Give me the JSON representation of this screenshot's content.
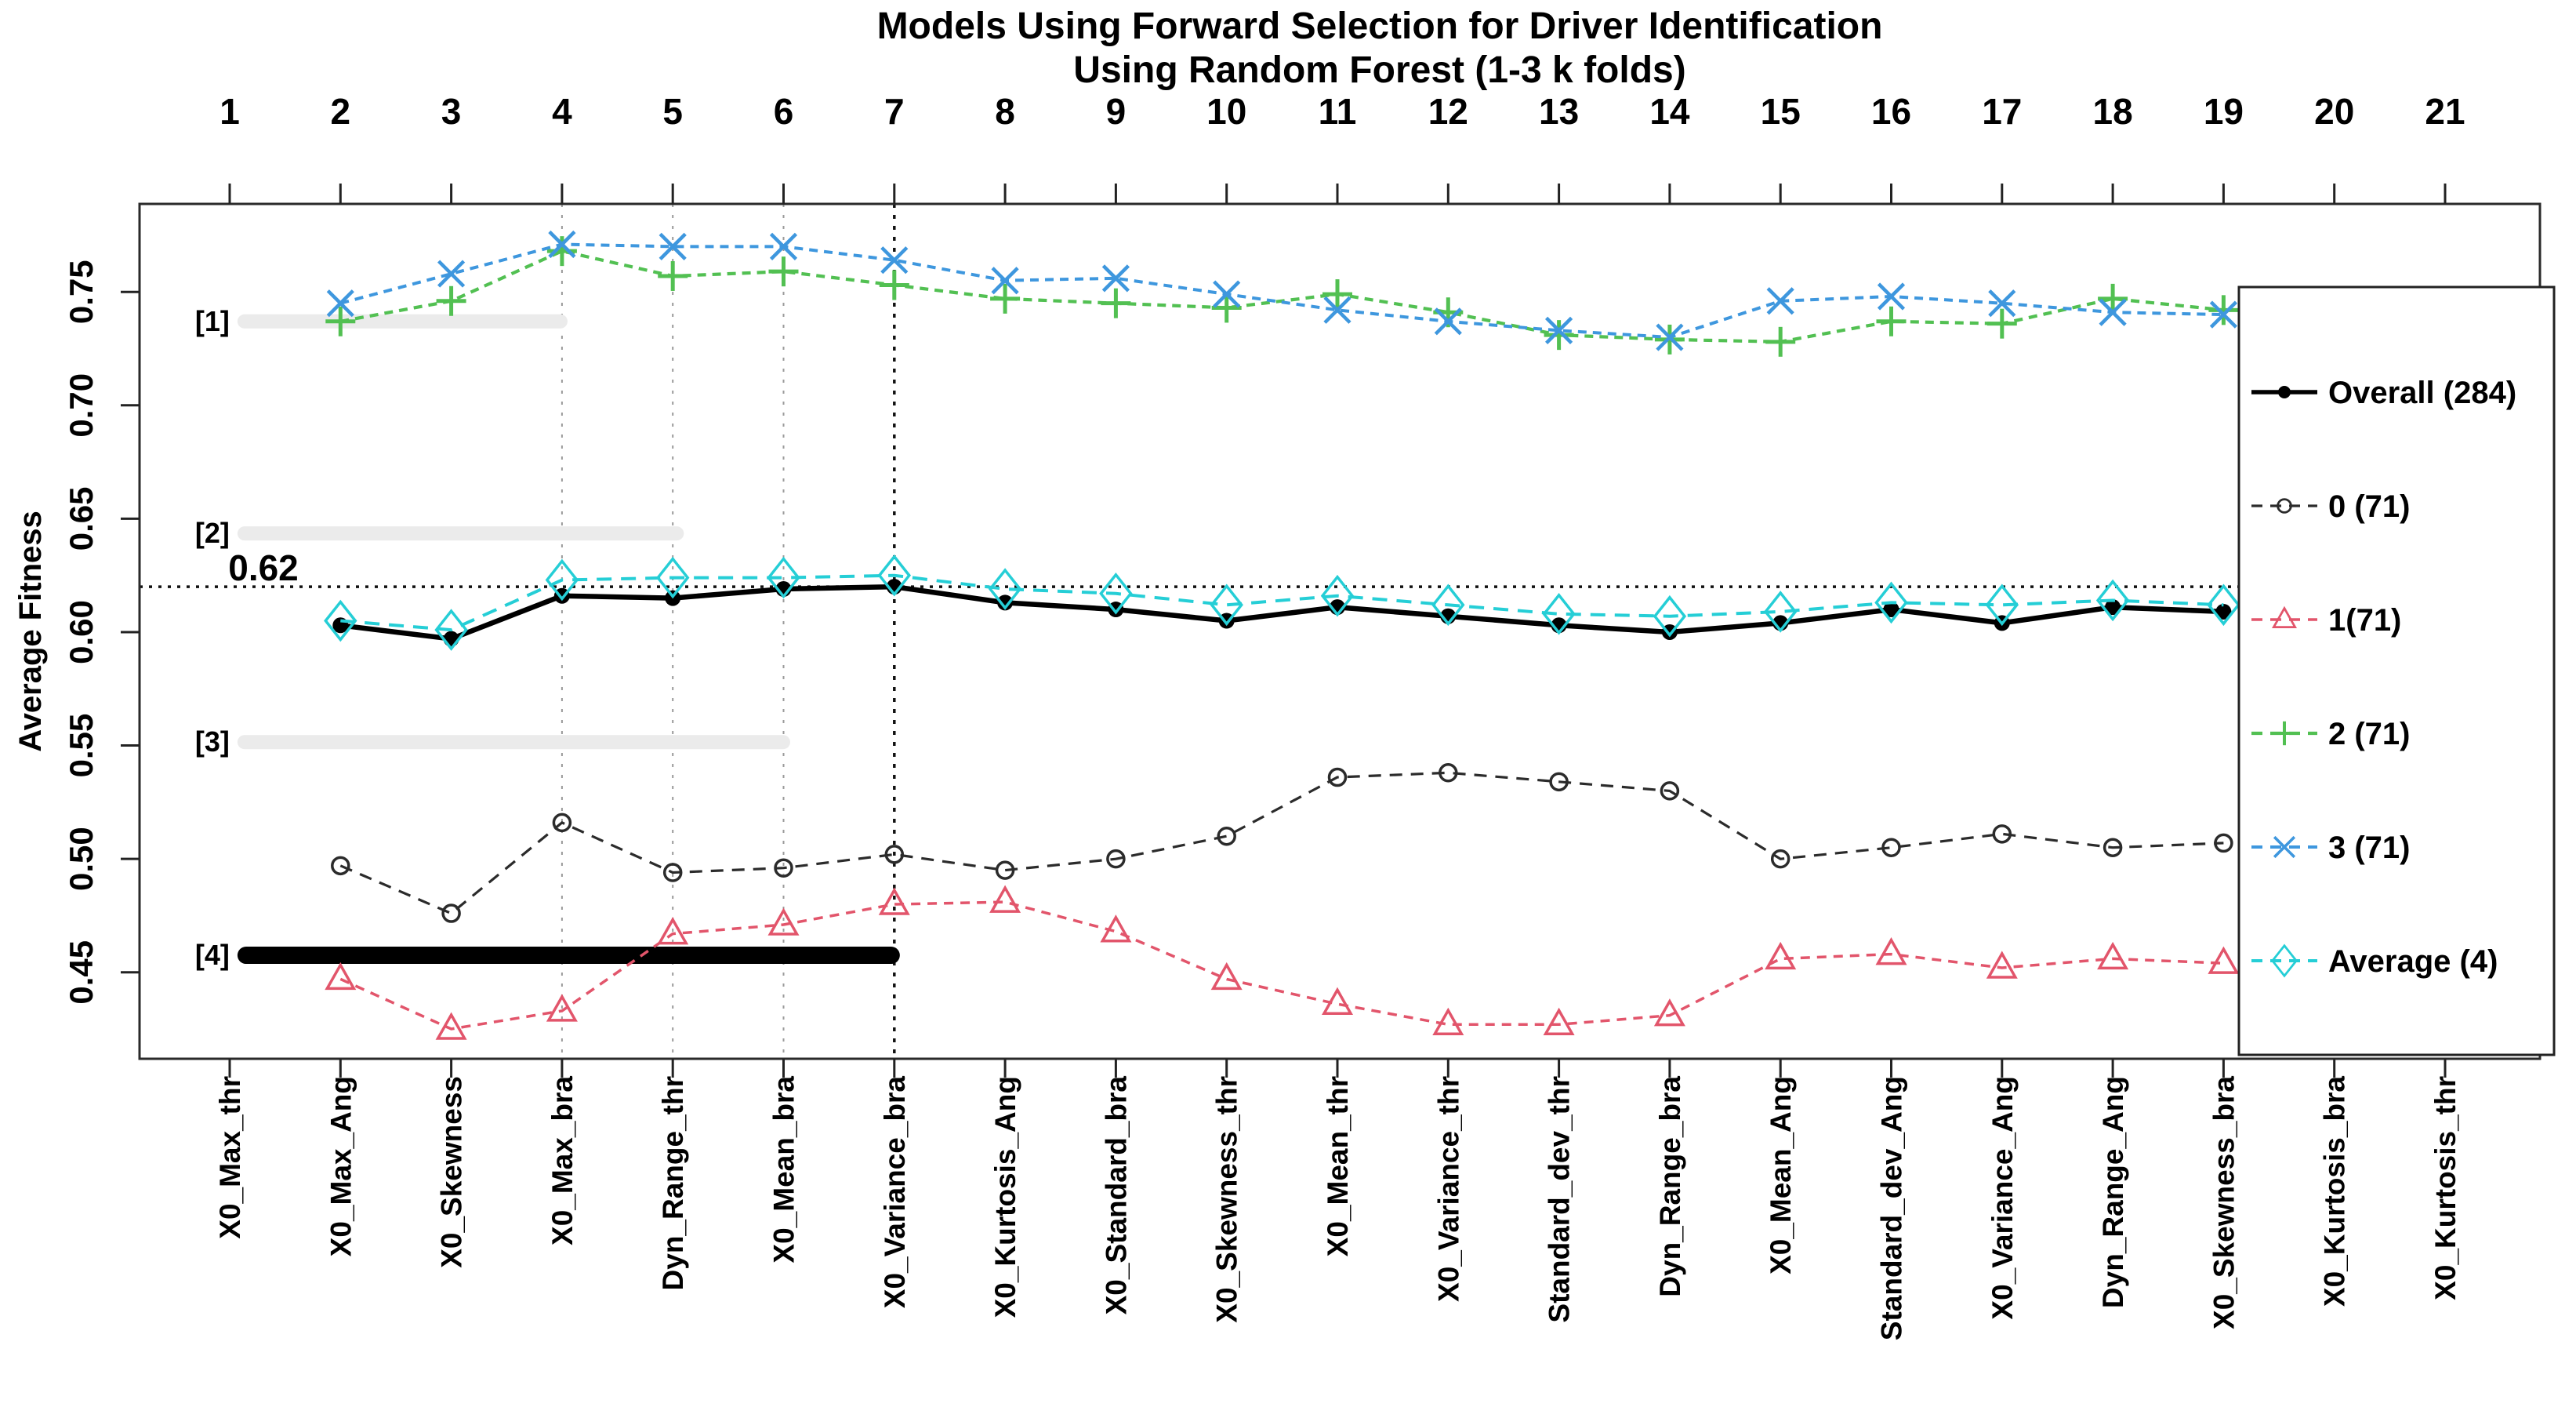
{
  "chart_data": {
    "type": "line",
    "title_line1": "Models Using Forward Selection for Driver Identification",
    "title_line2": "Using Random Forest (1-3 k folds)",
    "ylabel": "Average Fitness",
    "ylim": [
      0.412,
      0.789
    ],
    "y_ticks": [
      0.45,
      0.5,
      0.55,
      0.6,
      0.65,
      0.7,
      0.75
    ],
    "top_axis_numbers": [
      "1",
      "2",
      "3",
      "4",
      "5",
      "6",
      "7",
      "8",
      "9",
      "10",
      "11",
      "12",
      "13",
      "14",
      "15",
      "16",
      "17",
      "18",
      "19",
      "20",
      "21"
    ],
    "categories": [
      "X0_Max_thr",
      "X0_Max_Ang",
      "X0_Skewness",
      "X0_Max_bra",
      "Dyn_Range_thr",
      "X0_Mean_bra",
      "X0_Variance_bra",
      "X0_Kurtosis_Ang",
      "X0_Standard_bra",
      "X0_Skewness_thr",
      "X0_Mean_thr",
      "X0_Variance_thr",
      "Standard_dev_thr",
      "Dyn_Range_bra",
      "X0_Mean_Ang",
      "Standard_dev_Ang",
      "X0_Variance_Ang",
      "Dyn_Range_Ang",
      "X0_Skewness_bra",
      "X0_Kurtosis_bra",
      "X0_Kurtosis_thr"
    ],
    "reference_line": {
      "value": 0.62,
      "label": "0.62",
      "color": "#111111"
    },
    "vertical_guides": [
      {
        "category": 4,
        "emphasis": "light"
      },
      {
        "category": 5,
        "emphasis": "light"
      },
      {
        "category": 6,
        "emphasis": "light"
      },
      {
        "category": 7,
        "emphasis": "strong"
      }
    ],
    "reference_bars": [
      {
        "label": "[1]",
        "value": 0.737,
        "x_start": 1.07,
        "x_end": 4.05,
        "color": "#ebebeb",
        "thickness": 18
      },
      {
        "label": "[2]",
        "value": 0.6435,
        "x_start": 1.07,
        "x_end": 5.1,
        "color": "#ebebeb",
        "thickness": 18
      },
      {
        "label": "[3]",
        "value": 0.5515,
        "x_start": 1.07,
        "x_end": 6.06,
        "color": "#ebebeb",
        "thickness": 18
      },
      {
        "label": "[4]",
        "value": 0.4575,
        "x_start": 1.07,
        "x_end": 7.05,
        "color": "#000000",
        "thickness": 22
      }
    ],
    "series": [
      {
        "name": "Overall (284)",
        "color": "#000000",
        "marker": "filled-circle",
        "line": "solid",
        "values": [
          null,
          0.603,
          0.597,
          0.616,
          0.615,
          0.619,
          0.62,
          0.613,
          0.61,
          0.605,
          0.611,
          0.607,
          0.603,
          0.6,
          0.604,
          0.61,
          0.604,
          0.611,
          0.609,
          null,
          null
        ]
      },
      {
        "name": "0 (71)",
        "color": "#2b2b2b",
        "marker": "open-circle",
        "line": "dashed",
        "values": [
          null,
          0.497,
          0.476,
          0.516,
          0.494,
          0.496,
          0.502,
          0.495,
          0.5,
          0.51,
          0.536,
          0.538,
          0.534,
          0.53,
          0.5,
          0.505,
          0.511,
          0.505,
          0.507,
          null,
          null
        ]
      },
      {
        "name": "1(71)",
        "color": "#e2556b",
        "marker": "open-triangle",
        "line": "dashed",
        "values": [
          null,
          0.447,
          0.425,
          0.433,
          0.467,
          0.471,
          0.48,
          0.481,
          0.468,
          0.447,
          0.436,
          0.427,
          0.427,
          0.431,
          0.456,
          0.458,
          0.452,
          0.456,
          0.454,
          null,
          null
        ]
      },
      {
        "name": "2 (71)",
        "color": "#52c052",
        "marker": "plus",
        "line": "dashed",
        "values": [
          null,
          0.737,
          0.746,
          0.768,
          0.757,
          0.759,
          0.753,
          0.747,
          0.745,
          0.743,
          0.749,
          0.741,
          0.731,
          0.729,
          0.728,
          0.737,
          0.736,
          0.747,
          0.742,
          null,
          null
        ]
      },
      {
        "name": "3 (71)",
        "color": "#3e97de",
        "marker": "x",
        "line": "dashed",
        "values": [
          null,
          0.745,
          0.758,
          0.771,
          0.77,
          0.77,
          0.764,
          0.755,
          0.756,
          0.749,
          0.742,
          0.737,
          0.733,
          0.73,
          0.746,
          0.748,
          0.745,
          0.741,
          0.74,
          null,
          null
        ]
      },
      {
        "name": "Average (4)",
        "color": "#25ced6",
        "marker": "open-diamond",
        "line": "dashed",
        "values": [
          null,
          0.605,
          0.601,
          0.623,
          0.624,
          0.624,
          0.625,
          0.619,
          0.617,
          0.612,
          0.616,
          0.612,
          0.608,
          0.607,
          0.609,
          0.613,
          0.612,
          0.614,
          0.612,
          null,
          null
        ]
      }
    ],
    "legend": {
      "position": "right-inside-overlay",
      "entries": [
        "Overall (284)",
        "0 (71)",
        "1(71)",
        "2 (71)",
        "3 (71)",
        "Average (4)"
      ]
    }
  }
}
